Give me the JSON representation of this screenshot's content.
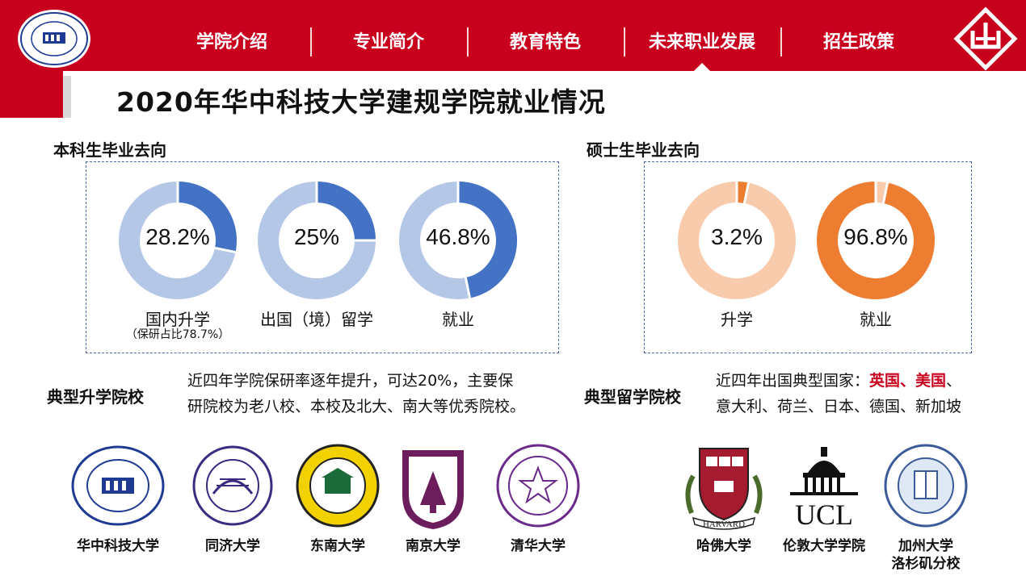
{
  "nav": {
    "items": [
      "学院介绍",
      "专业简介",
      "教育特色",
      "未来职业发展",
      "招生政策"
    ],
    "active_index": 3
  },
  "page_title": "2020年华中科技大学建规学院就业情况",
  "undergrad": {
    "title": "本科生毕业去向",
    "charts": [
      {
        "value_label": "28.2%",
        "value": 28.2,
        "label": "国内升学",
        "note": "（保研占比78.7%）"
      },
      {
        "value_label": "25%",
        "value": 25,
        "label": "出国（境）留学",
        "note": ""
      },
      {
        "value_label": "46.8%",
        "value": 46.8,
        "label": "就业",
        "note": ""
      }
    ],
    "colors": {
      "main": "#4472c4",
      "rest": "#b4c7e7"
    }
  },
  "master": {
    "title": "硕士生毕业去向",
    "charts": [
      {
        "value_label": "3.2%",
        "value": 3.2,
        "label": "升学"
      },
      {
        "value_label": "96.8%",
        "value": 96.8,
        "label": "就业"
      }
    ],
    "colors": {
      "main": "#ed7d31",
      "rest": "#f8cbad"
    }
  },
  "typical_further_study": {
    "title": "典型升学院校",
    "text_line1": "近四年学院保研率逐年提升，可达20%，主要保",
    "text_line2": "研院校为老八校、本校及北大、南大等优秀院校。",
    "schools": [
      "华中科技大学",
      "同济大学",
      "东南大学",
      "南京大学",
      "清华大学"
    ]
  },
  "typical_abroad": {
    "title": "典型留学院校",
    "text_prefix": "近四年出国典型国家：",
    "highlight": "英国、美国",
    "text_suffix1": "、",
    "text_line2": "意大利、荷兰、日本、德国、新加坡",
    "schools": [
      {
        "name": "哈佛大学",
        "name2": ""
      },
      {
        "name": "伦敦大学学院",
        "name2": ""
      },
      {
        "name": "加州大学",
        "name2": "洛杉矶分校"
      }
    ],
    "logo_text": {
      "harvard": "HARVARD",
      "ucl": "UCL"
    }
  },
  "colors": {
    "brand_red": "#c8001e"
  }
}
